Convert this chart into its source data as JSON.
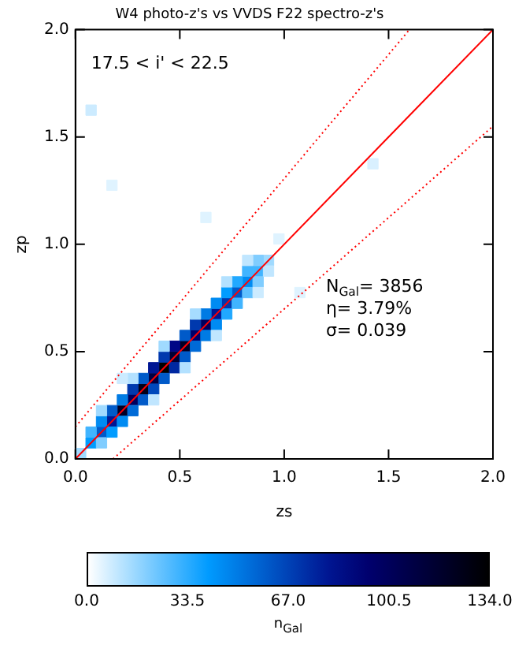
{
  "chart_data": {
    "type": "scatter",
    "title": "W4 photo-z's vs VVDS F22 spectro-z's",
    "xlabel": "zs",
    "ylabel": "zp",
    "clabel": "n$_{Gal}$",
    "xlim": [
      0,
      2
    ],
    "ylim": [
      0,
      2
    ],
    "xticks": [
      {
        "value": 0,
        "label": "0.0"
      },
      {
        "value": 0.5,
        "label": "0.5"
      },
      {
        "value": 1,
        "label": "1.0"
      },
      {
        "value": 1.5,
        "label": "1.5"
      },
      {
        "value": 2,
        "label": "2.0"
      }
    ],
    "yticks": [
      {
        "value": 0,
        "label": "0.0"
      },
      {
        "value": 0.5,
        "label": "0.5"
      },
      {
        "value": 1,
        "label": "1.0"
      },
      {
        "value": 1.5,
        "label": "1.5"
      },
      {
        "value": 2,
        "label": "2.0"
      }
    ],
    "clim": [
      0,
      134
    ],
    "cticks": [
      {
        "value": 0,
        "label": "0.0"
      },
      33.5,
      {
        "value": 67,
        "label": "67.0"
      },
      100.5,
      {
        "value": 134,
        "label": "134.0"
      }
    ],
    "grid": false,
    "legend": false,
    "annotations": [
      "17.5 < i' < 22.5",
      "N$_{Gal}$= 3856",
      "η= 3.79%",
      "σ= 0.039"
    ],
    "series": [
      {
        "marker": "square",
        "colors": [
          "#a0daff",
          "#019cff",
          "#005ac9",
          "#001793",
          "#000026",
          "#00005d",
          "#000019",
          "#000042",
          "#000000",
          "#000034",
          "#000026",
          "#00006a",
          "#00005d",
          "#001793",
          "#0039ae",
          "#005ac9",
          "#008bf2",
          "#41b4ff",
          "#a0daff",
          "#41b4ff",
          "#008bf2",
          "#005ac9",
          "#007be4",
          "#0039ae",
          "#005ac9",
          "#001793",
          "#0039ae",
          "#000786",
          "#005ac9",
          "#0039ae",
          "#007be4",
          "#008bf2",
          "#019cff",
          "#21a8ff",
          "#41b4ff",
          "#80cdff",
          "#80cdff",
          "#019cff",
          "#008bf2",
          "#006ad7",
          "#005ac9",
          "#0049bc",
          "#005ac9",
          "#0028a1",
          "#005ac9",
          "#006ad7",
          "#007be4",
          "#008bf2",
          "#21a8ff",
          "#41b4ff",
          "#60c1ff",
          "#80cdff",
          "#c0e6ff",
          "#a0daff",
          "#b3e1ff",
          "#a0daff",
          "#a6dcff",
          "#b3e1ff",
          "#c0e6ff",
          "#c0e6ff",
          "#b3e1ff",
          "#c0e6ff",
          "#ccebff",
          "#ccebff",
          "#dff3ff",
          "#d9f0ff",
          "#ccebff",
          "#dff3ff",
          "#dff3ff",
          "#dff3ff"
        ],
        "x": [
          0.025,
          0.075,
          0.125,
          0.175,
          0.225,
          0.275,
          0.325,
          0.375,
          0.425,
          0.475,
          0.525,
          0.575,
          0.625,
          0.675,
          0.725,
          0.775,
          0.825,
          0.875,
          0.925,
          0.075,
          0.125,
          0.175,
          0.225,
          0.275,
          0.325,
          0.375,
          0.425,
          0.475,
          0.525,
          0.575,
          0.625,
          0.675,
          0.725,
          0.775,
          0.825,
          0.875,
          0.125,
          0.175,
          0.225,
          0.275,
          0.325,
          0.375,
          0.425,
          0.475,
          0.525,
          0.575,
          0.625,
          0.675,
          0.725,
          0.775,
          0.825,
          0.875,
          0.925,
          0.125,
          0.275,
          0.425,
          0.575,
          0.725,
          0.825,
          0.375,
          0.525,
          0.675,
          0.875,
          0.225,
          0.975,
          1.425,
          0.075,
          0.175,
          0.625,
          1.075
        ],
        "values": [
          0.025,
          0.075,
          0.125,
          0.175,
          0.225,
          0.275,
          0.325,
          0.375,
          0.425,
          0.475,
          0.525,
          0.575,
          0.625,
          0.675,
          0.725,
          0.775,
          0.825,
          0.875,
          0.925,
          0.125,
          0.175,
          0.225,
          0.275,
          0.325,
          0.375,
          0.425,
          0.475,
          0.525,
          0.575,
          0.625,
          0.675,
          0.725,
          0.775,
          0.825,
          0.875,
          0.925,
          0.075,
          0.125,
          0.175,
          0.225,
          0.275,
          0.325,
          0.375,
          0.425,
          0.475,
          0.525,
          0.575,
          0.625,
          0.675,
          0.725,
          0.775,
          0.825,
          0.875,
          0.225,
          0.375,
          0.525,
          0.675,
          0.825,
          0.925,
          0.275,
          0.425,
          0.575,
          0.775,
          0.375,
          1.025,
          1.375,
          1.625,
          1.275,
          1.125,
          0.775
        ],
        "cvalues": [
          15,
          40,
          60,
          80,
          120,
          100,
          125,
          110,
          134,
          115,
          120,
          95,
          100,
          80,
          70,
          60,
          45,
          30,
          15,
          30,
          45,
          60,
          50,
          70,
          60,
          80,
          70,
          85,
          60,
          70,
          50,
          45,
          40,
          35,
          30,
          20,
          20,
          40,
          45,
          55,
          60,
          65,
          60,
          75,
          60,
          55,
          50,
          45,
          35,
          30,
          25,
          20,
          10,
          15,
          12,
          15,
          14,
          12,
          10,
          10,
          12,
          10,
          8,
          8,
          5,
          6,
          8,
          5,
          5,
          5
        ]
      },
      {
        "type": "line",
        "color": "#ff0000",
        "line_style": "solid",
        "x": [
          0,
          2
        ],
        "values": [
          0,
          2
        ]
      },
      {
        "type": "line",
        "color": "#ff0000",
        "line_style": "dotted",
        "x": [
          0,
          1.6
        ],
        "values": [
          0.15,
          2
        ]
      },
      {
        "type": "line",
        "color": "#ff0000",
        "line_style": "dotted",
        "x": [
          0.18,
          2
        ],
        "values": [
          0,
          1.55
        ]
      }
    ]
  }
}
